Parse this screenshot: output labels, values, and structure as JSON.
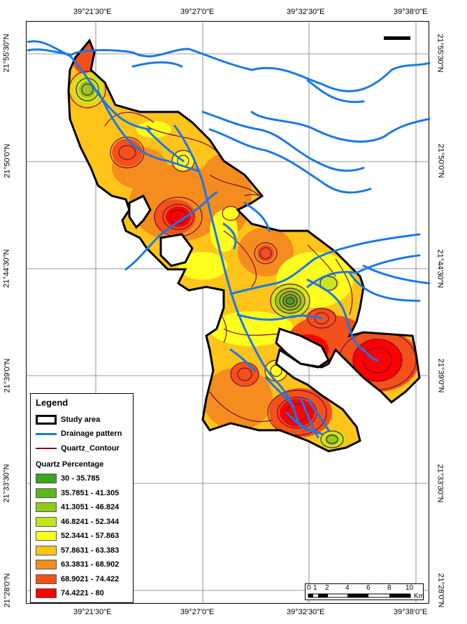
{
  "map": {
    "coords_top": [
      "39°21'30\"E",
      "39°27'0\"E",
      "39°32'30\"E",
      "39°38'0\"E"
    ],
    "coords_bottom": [
      "39°21'30\"E",
      "39°27'0\"E",
      "39°32'30\"E",
      "39°38'0\"E"
    ],
    "coords_left": [
      "21°55'30\"N",
      "21°50'0\"N",
      "21°44'30\"N",
      "21°39'0\"N",
      "21°33'30\"N",
      "21°28'0\"N"
    ],
    "coords_right": [
      "21°55'30\"N",
      "21°50'0\"N",
      "21°44'30\"N",
      "21°39'0\"N",
      "21°33'30\"N",
      "21°28'0\"N"
    ]
  },
  "legend": {
    "title": "Legend",
    "study_area": "Study area",
    "drainage": "Drainage pattern",
    "contour": "Quartz_Contour",
    "classes_title": "Quartz Percentage",
    "classes": [
      {
        "label": "30 - 35.785",
        "color": "#3aa51e"
      },
      {
        "label": "35.7851 - 41.305",
        "color": "#5cb81c"
      },
      {
        "label": "41.3051 - 46.824",
        "color": "#8fcc1c"
      },
      {
        "label": "46.8241 - 52.344",
        "color": "#c8e61c"
      },
      {
        "label": "52.3441 - 57.863",
        "color": "#ffff1e"
      },
      {
        "label": "57.8631 - 63.383",
        "color": "#ffc41a"
      },
      {
        "label": "63.3831 - 68.902",
        "color": "#f58c1e"
      },
      {
        "label": "68.9021 - 74.422",
        "color": "#f3501a"
      },
      {
        "label": "74.4221 - 80",
        "color": "#ff0000"
      }
    ],
    "study_area_color": "#000000",
    "drainage_color": "#1a78e6",
    "contour_color": "#7a0c3c"
  },
  "scale": {
    "ticks": [
      "0",
      "1",
      "2",
      "4",
      "6",
      "8",
      "10"
    ],
    "unit": "Km"
  }
}
